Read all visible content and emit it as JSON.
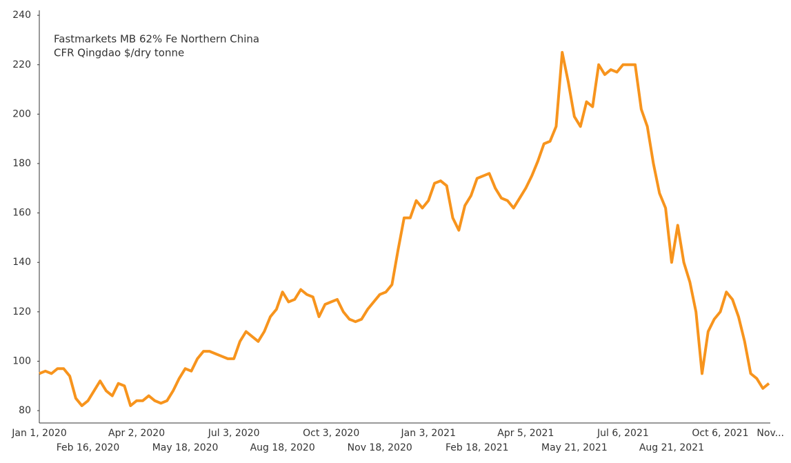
{
  "chart_data": {
    "type": "line",
    "annotation": [
      "Fastmarkets MB 62% Fe Northern China",
      "CFR Qingdao $/dry tonne"
    ],
    "categories": [
      "Jan 1, 2020",
      null,
      null,
      null,
      null,
      null,
      null,
      null,
      "Feb 16, 2020",
      null,
      null,
      null,
      null,
      null,
      null,
      null,
      "Apr 2, 2020",
      null,
      null,
      null,
      null,
      null,
      null,
      null,
      "May 18, 2020",
      null,
      null,
      null,
      null,
      null,
      null,
      null,
      "Jul 3, 2020",
      null,
      null,
      null,
      null,
      null,
      null,
      null,
      "Aug 18, 2020",
      null,
      null,
      null,
      null,
      null,
      null,
      null,
      "Oct 3, 2020",
      null,
      null,
      null,
      null,
      null,
      null,
      null,
      "Nov 18, 2020",
      null,
      null,
      null,
      null,
      null,
      null,
      null,
      "Jan 3, 2021",
      null,
      null,
      null,
      null,
      null,
      null,
      null,
      "Feb 18, 2021",
      null,
      null,
      null,
      null,
      null,
      null,
      null,
      "Apr 5, 2021",
      null,
      null,
      null,
      null,
      null,
      null,
      null,
      "May 21, 2021",
      null,
      null,
      null,
      null,
      null,
      null,
      null,
      "Jul 6, 2021",
      null,
      null,
      null,
      null,
      null,
      null,
      null,
      "Aug 21, 2021",
      null,
      null,
      null,
      null,
      null,
      null,
      null,
      "Oct 6, 2021",
      null,
      null,
      null,
      null,
      null,
      null,
      null,
      "Nov..."
    ],
    "series": [
      {
        "color": "#f7941d",
        "values": [
          95,
          96,
          95,
          97,
          97,
          94,
          85,
          82,
          84,
          88,
          92,
          88,
          86,
          91,
          90,
          82,
          84,
          84,
          86,
          84,
          83,
          84,
          88,
          93,
          97,
          96,
          101,
          104,
          104,
          103,
          102,
          101,
          101,
          108,
          112,
          110,
          108,
          112,
          118,
          121,
          128,
          124,
          125,
          129,
          127,
          126,
          118,
          123,
          124,
          125,
          120,
          117,
          116,
          117,
          121,
          124,
          127,
          128,
          131,
          145,
          158,
          158,
          165,
          162,
          165,
          172,
          173,
          171,
          158,
          153,
          163,
          167,
          174,
          175,
          176,
          170,
          166,
          165,
          162,
          166,
          170,
          175,
          181,
          188,
          189,
          195,
          225,
          213,
          199,
          195,
          205,
          203,
          220,
          216,
          218,
          217,
          220,
          220,
          220,
          202,
          195,
          180,
          168,
          162,
          140,
          155,
          140,
          132,
          120,
          95,
          112,
          117,
          120,
          128,
          125,
          118,
          108,
          95,
          93,
          89,
          91
        ]
      }
    ],
    "ylim": [
      75,
      242
    ],
    "yticks": [
      80,
      100,
      120,
      140,
      160,
      180,
      200,
      220,
      240
    ]
  }
}
